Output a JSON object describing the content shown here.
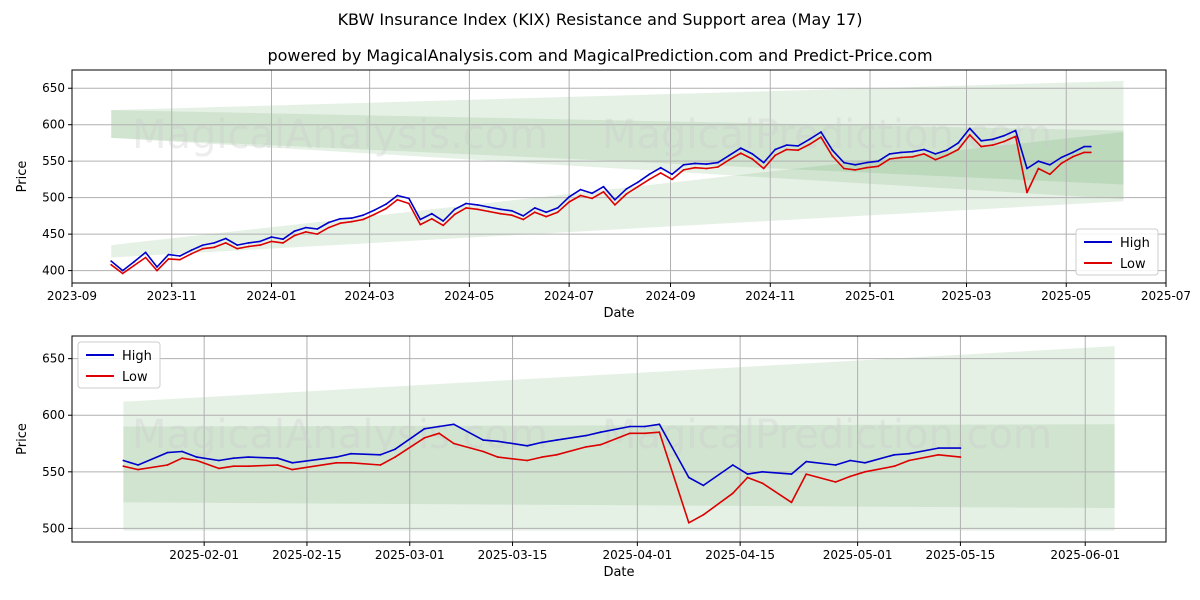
{
  "title": "KBW Insurance Index (KIX) Resistance and Support area (May 17)",
  "subtitle": "powered by MagicalAnalysis.com and MagicalPrediction.com and Predict-Price.com",
  "watermarks": [
    "MagicalAnalysis.com",
    "MagicalPrediction.com"
  ],
  "colors": {
    "high": "#0000cc",
    "low": "#dd0000",
    "band": "#2e8b2e",
    "grid": "#b0b0b0"
  },
  "chart_data": [
    {
      "type": "line",
      "xlabel": "Date",
      "ylabel": "Price",
      "grid": true,
      "legend": "bottom-right",
      "xlim": [
        "2023-09-01",
        "2025-07-01"
      ],
      "ylim": [
        383,
        675
      ],
      "x_ticks": [
        "2023-09",
        "2023-11",
        "2024-01",
        "2024-03",
        "2024-05",
        "2024-07",
        "2024-09",
        "2024-11",
        "2025-01",
        "2025-03",
        "2025-05",
        "2025-07"
      ],
      "y_ticks": [
        400,
        450,
        500,
        550,
        600,
        650
      ],
      "bands": [
        {
          "name": "resistance-outer",
          "x": [
            "2023-09-25",
            "2025-06-05"
          ],
          "upper": [
            620,
            660
          ],
          "lower": [
            582,
            498
          ]
        },
        {
          "name": "resistance-inner",
          "x": [
            "2023-09-25",
            "2025-06-05"
          ],
          "upper": [
            620,
            592
          ],
          "lower": [
            582,
            518
          ]
        },
        {
          "name": "support",
          "x": [
            "2023-09-25",
            "2025-06-05"
          ],
          "upper": [
            435,
            590
          ],
          "lower": [
            418,
            495
          ]
        }
      ],
      "series": [
        {
          "name": "High",
          "x": [
            "2023-09-25",
            "2023-10-02",
            "2023-10-09",
            "2023-10-16",
            "2023-10-23",
            "2023-10-30",
            "2023-11-06",
            "2023-11-13",
            "2023-11-20",
            "2023-11-27",
            "2023-12-04",
            "2023-12-11",
            "2023-12-18",
            "2023-12-25",
            "2024-01-01",
            "2024-01-08",
            "2024-01-15",
            "2024-01-22",
            "2024-01-29",
            "2024-02-05",
            "2024-02-12",
            "2024-02-19",
            "2024-02-26",
            "2024-03-04",
            "2024-03-11",
            "2024-03-18",
            "2024-03-25",
            "2024-04-01",
            "2024-04-08",
            "2024-04-15",
            "2024-04-22",
            "2024-04-29",
            "2024-05-06",
            "2024-05-13",
            "2024-05-20",
            "2024-05-27",
            "2024-06-03",
            "2024-06-10",
            "2024-06-17",
            "2024-06-24",
            "2024-07-01",
            "2024-07-08",
            "2024-07-15",
            "2024-07-22",
            "2024-07-29",
            "2024-08-05",
            "2024-08-12",
            "2024-08-19",
            "2024-08-26",
            "2024-09-02",
            "2024-09-09",
            "2024-09-16",
            "2024-09-23",
            "2024-09-30",
            "2024-10-07",
            "2024-10-14",
            "2024-10-21",
            "2024-10-28",
            "2024-11-04",
            "2024-11-11",
            "2024-11-18",
            "2024-11-25",
            "2024-12-02",
            "2024-12-09",
            "2024-12-16",
            "2024-12-23",
            "2024-12-30",
            "2025-01-06",
            "2025-01-13",
            "2025-01-20",
            "2025-01-27",
            "2025-02-03",
            "2025-02-10",
            "2025-02-17",
            "2025-02-24",
            "2025-03-03",
            "2025-03-10",
            "2025-03-17",
            "2025-03-24",
            "2025-03-31",
            "2025-04-07",
            "2025-04-14",
            "2025-04-21",
            "2025-04-28",
            "2025-05-05",
            "2025-05-12",
            "2025-05-16"
          ],
          "values": [
            413,
            400,
            412,
            425,
            405,
            422,
            420,
            428,
            435,
            438,
            444,
            435,
            438,
            440,
            446,
            443,
            454,
            459,
            457,
            466,
            471,
            472,
            476,
            483,
            491,
            503,
            499,
            470,
            478,
            468,
            484,
            492,
            490,
            487,
            484,
            482,
            475,
            486,
            480,
            486,
            501,
            511,
            506,
            515,
            497,
            512,
            521,
            532,
            541,
            532,
            545,
            547,
            546,
            548,
            558,
            568,
            560,
            548,
            566,
            572,
            571,
            580,
            590,
            565,
            548,
            545,
            548,
            550,
            560,
            562,
            563,
            566,
            560,
            565,
            575,
            595,
            578,
            580,
            585,
            592,
            540,
            550,
            545,
            555,
            562,
            570,
            570
          ]
        },
        {
          "name": "Low",
          "x": [
            "2023-09-25",
            "2023-10-02",
            "2023-10-09",
            "2023-10-16",
            "2023-10-23",
            "2023-10-30",
            "2023-11-06",
            "2023-11-13",
            "2023-11-20",
            "2023-11-27",
            "2023-12-04",
            "2023-12-11",
            "2023-12-18",
            "2023-12-25",
            "2024-01-01",
            "2024-01-08",
            "2024-01-15",
            "2024-01-22",
            "2024-01-29",
            "2024-02-05",
            "2024-02-12",
            "2024-02-19",
            "2024-02-26",
            "2024-03-04",
            "2024-03-11",
            "2024-03-18",
            "2024-03-25",
            "2024-04-01",
            "2024-04-08",
            "2024-04-15",
            "2024-04-22",
            "2024-04-29",
            "2024-05-06",
            "2024-05-13",
            "2024-05-20",
            "2024-05-27",
            "2024-06-03",
            "2024-06-10",
            "2024-06-17",
            "2024-06-24",
            "2024-07-01",
            "2024-07-08",
            "2024-07-15",
            "2024-07-22",
            "2024-07-29",
            "2024-08-05",
            "2024-08-12",
            "2024-08-19",
            "2024-08-26",
            "2024-09-02",
            "2024-09-09",
            "2024-09-16",
            "2024-09-23",
            "2024-09-30",
            "2024-10-07",
            "2024-10-14",
            "2024-10-21",
            "2024-10-28",
            "2024-11-04",
            "2024-11-11",
            "2024-11-18",
            "2024-11-25",
            "2024-12-02",
            "2024-12-09",
            "2024-12-16",
            "2024-12-23",
            "2024-12-30",
            "2025-01-06",
            "2025-01-13",
            "2025-01-20",
            "2025-01-27",
            "2025-02-03",
            "2025-02-10",
            "2025-02-17",
            "2025-02-24",
            "2025-03-03",
            "2025-03-10",
            "2025-03-17",
            "2025-03-24",
            "2025-03-31",
            "2025-04-07",
            "2025-04-14",
            "2025-04-21",
            "2025-04-28",
            "2025-05-05",
            "2025-05-12",
            "2025-05-16"
          ],
          "values": [
            408,
            396,
            407,
            418,
            400,
            416,
            415,
            423,
            430,
            432,
            438,
            430,
            433,
            435,
            440,
            438,
            448,
            453,
            450,
            459,
            465,
            467,
            470,
            477,
            485,
            497,
            492,
            463,
            471,
            462,
            477,
            486,
            484,
            481,
            478,
            476,
            470,
            480,
            474,
            480,
            494,
            503,
            499,
            508,
            490,
            505,
            515,
            525,
            534,
            525,
            538,
            541,
            540,
            542,
            552,
            561,
            553,
            540,
            558,
            566,
            565,
            573,
            583,
            557,
            540,
            538,
            541,
            543,
            553,
            555,
            556,
            560,
            552,
            558,
            566,
            586,
            570,
            572,
            577,
            584,
            507,
            540,
            532,
            547,
            556,
            562,
            562
          ]
        }
      ]
    },
    {
      "type": "line",
      "xlabel": "Date",
      "ylabel": "Price",
      "grid": true,
      "legend": "top-left",
      "xlim": [
        "2025-01-14",
        "2025-06-12"
      ],
      "ylim": [
        488,
        670
      ],
      "x_ticks": [
        "2025-02-01",
        "2025-02-15",
        "2025-03-01",
        "2025-03-15",
        "2025-04-01",
        "2025-04-15",
        "2025-05-01",
        "2025-05-15",
        "2025-06-01"
      ],
      "y_ticks": [
        500,
        550,
        600,
        650
      ],
      "bands": [
        {
          "name": "resistance-outer",
          "x": [
            "2025-01-21",
            "2025-06-05"
          ],
          "upper": [
            612,
            661
          ],
          "lower": [
            498,
            498
          ]
        },
        {
          "name": "resistance-inner",
          "x": [
            "2025-01-21",
            "2025-06-05"
          ],
          "upper": [
            590,
            592
          ],
          "lower": [
            523,
            518
          ]
        }
      ],
      "series": [
        {
          "name": "High",
          "x": [
            "2025-01-21",
            "2025-01-23",
            "2025-01-27",
            "2025-01-29",
            "2025-01-31",
            "2025-02-03",
            "2025-02-05",
            "2025-02-07",
            "2025-02-11",
            "2025-02-13",
            "2025-02-19",
            "2025-02-21",
            "2025-02-25",
            "2025-02-27",
            "2025-03-03",
            "2025-03-05",
            "2025-03-07",
            "2025-03-11",
            "2025-03-13",
            "2025-03-17",
            "2025-03-19",
            "2025-03-21",
            "2025-03-25",
            "2025-03-27",
            "2025-03-31",
            "2025-04-02",
            "2025-04-04",
            "2025-04-08",
            "2025-04-10",
            "2025-04-14",
            "2025-04-16",
            "2025-04-18",
            "2025-04-22",
            "2025-04-24",
            "2025-04-28",
            "2025-04-30",
            "2025-05-02",
            "2025-05-06",
            "2025-05-08",
            "2025-05-12",
            "2025-05-15"
          ],
          "values": [
            560,
            556,
            567,
            568,
            563,
            560,
            562,
            563,
            562,
            558,
            563,
            566,
            565,
            570,
            588,
            590,
            592,
            578,
            577,
            573,
            576,
            578,
            582,
            585,
            590,
            590,
            592,
            545,
            538,
            556,
            548,
            550,
            548,
            559,
            556,
            560,
            558,
            565,
            566,
            571,
            571
          ]
        },
        {
          "name": "Low",
          "x": [
            "2025-01-21",
            "2025-01-23",
            "2025-01-27",
            "2025-01-29",
            "2025-01-31",
            "2025-02-03",
            "2025-02-05",
            "2025-02-07",
            "2025-02-11",
            "2025-02-13",
            "2025-02-19",
            "2025-02-21",
            "2025-02-25",
            "2025-02-27",
            "2025-03-03",
            "2025-03-05",
            "2025-03-07",
            "2025-03-11",
            "2025-03-13",
            "2025-03-17",
            "2025-03-19",
            "2025-03-21",
            "2025-03-25",
            "2025-03-27",
            "2025-03-31",
            "2025-04-02",
            "2025-04-04",
            "2025-04-08",
            "2025-04-10",
            "2025-04-14",
            "2025-04-16",
            "2025-04-18",
            "2025-04-22",
            "2025-04-24",
            "2025-04-28",
            "2025-04-30",
            "2025-05-02",
            "2025-05-06",
            "2025-05-08",
            "2025-05-12",
            "2025-05-15"
          ],
          "values": [
            555,
            552,
            556,
            562,
            560,
            553,
            555,
            555,
            556,
            552,
            558,
            558,
            556,
            563,
            580,
            584,
            575,
            568,
            563,
            560,
            563,
            565,
            572,
            574,
            584,
            584,
            585,
            505,
            512,
            531,
            545,
            540,
            523,
            548,
            541,
            546,
            550,
            555,
            560,
            565,
            563
          ]
        }
      ]
    }
  ]
}
